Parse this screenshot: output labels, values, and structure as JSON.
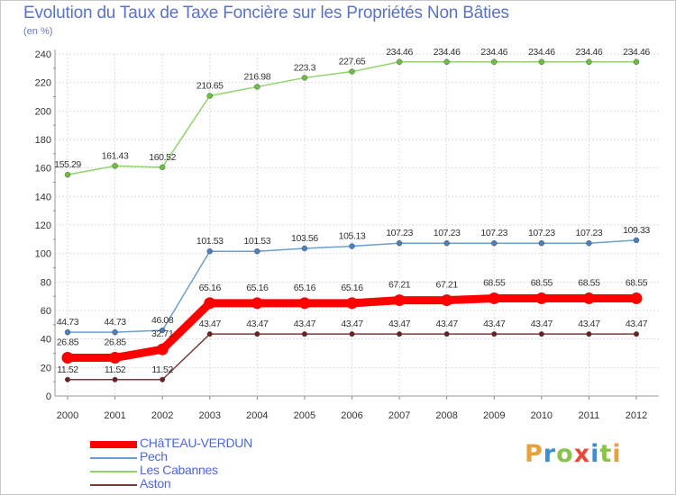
{
  "title": "Evolution du Taux de Taxe Foncière sur les Propriétés Non Bâties",
  "unit_label": "(en %)",
  "logo": {
    "text": "Proxiti",
    "letters": [
      "P",
      "r",
      "o",
      "x",
      "i",
      "t",
      "i"
    ],
    "colors": [
      "#e8a23a",
      "#3a8fd8",
      "#8bc34a",
      "#e84a3a",
      "#3a8fd8",
      "#8bc34a",
      "#e8a23a"
    ]
  },
  "chart_data": {
    "type": "line",
    "title": "Evolution du Taux de Taxe Foncière sur les Propriétés Non Bâties",
    "ylabel": "(en %)",
    "xlabel": "",
    "ylim": [
      0,
      240
    ],
    "yticks": [
      0,
      20,
      40,
      60,
      80,
      100,
      120,
      140,
      160,
      180,
      200,
      220,
      240
    ],
    "grid": true,
    "x": [
      "2000",
      "2001",
      "2002",
      "2003",
      "2004",
      "2005",
      "2006",
      "2007",
      "2008",
      "2009",
      "2010",
      "2011",
      "2012"
    ],
    "series": [
      {
        "name": "Les Cabannes",
        "color": "#8fd468",
        "marker_color": "#6cc040",
        "values": [
          155.29,
          161.43,
          160.52,
          210.65,
          216.98,
          223.3,
          227.65,
          234.46,
          234.46,
          234.46,
          234.46,
          234.46,
          234.46
        ],
        "labels": [
          "155.29",
          "161.43",
          "160.52",
          "210.65",
          "216.98",
          "223.3",
          "227.65",
          "234.46",
          "234.46",
          "234.46",
          "234.46",
          "234.46",
          "234.46"
        ]
      },
      {
        "name": "Pech",
        "color": "#6a9fd0",
        "marker_color": "#4a80c0",
        "values": [
          44.73,
          44.73,
          46.08,
          101.53,
          101.53,
          103.56,
          105.13,
          107.23,
          107.23,
          107.23,
          107.23,
          107.23,
          109.33
        ],
        "labels": [
          "44.73",
          "44.73",
          "46.08",
          "101.53",
          "101.53",
          "103.56",
          "105.13",
          "107.23",
          "107.23",
          "107.23",
          "107.23",
          "107.23",
          "109.33"
        ]
      },
      {
        "name": "CHâTEAU-VERDUN",
        "color": "#ff0000",
        "marker_color": "#ff0000",
        "values": [
          26.85,
          26.85,
          32.71,
          65.16,
          65.16,
          65.16,
          65.16,
          67.21,
          67.21,
          68.55,
          68.55,
          68.55,
          68.55
        ],
        "labels": [
          "26.85",
          "26.85",
          "32.71",
          "65.16",
          "65.16",
          "65.16",
          "65.16",
          "67.21",
          "67.21",
          "68.55",
          "68.55",
          "68.55",
          "68.55"
        ]
      },
      {
        "name": "Aston",
        "color": "#7a3a3a",
        "marker_color": "#6a2020",
        "values": [
          11.52,
          11.52,
          11.52,
          43.47,
          43.47,
          43.47,
          43.47,
          43.47,
          43.47,
          43.47,
          43.47,
          43.47,
          43.47
        ],
        "labels": [
          "11.52",
          "11.52",
          "11.52",
          "43.47",
          "43.47",
          "43.47",
          "43.47",
          "43.47",
          "43.47",
          "43.47",
          "43.47",
          "43.47",
          "43.47"
        ]
      }
    ],
    "legend": [
      "CHâTEAU-VERDUN",
      "Pech",
      "Les Cabannes",
      "Aston"
    ],
    "legend_position": "bottom-left"
  }
}
